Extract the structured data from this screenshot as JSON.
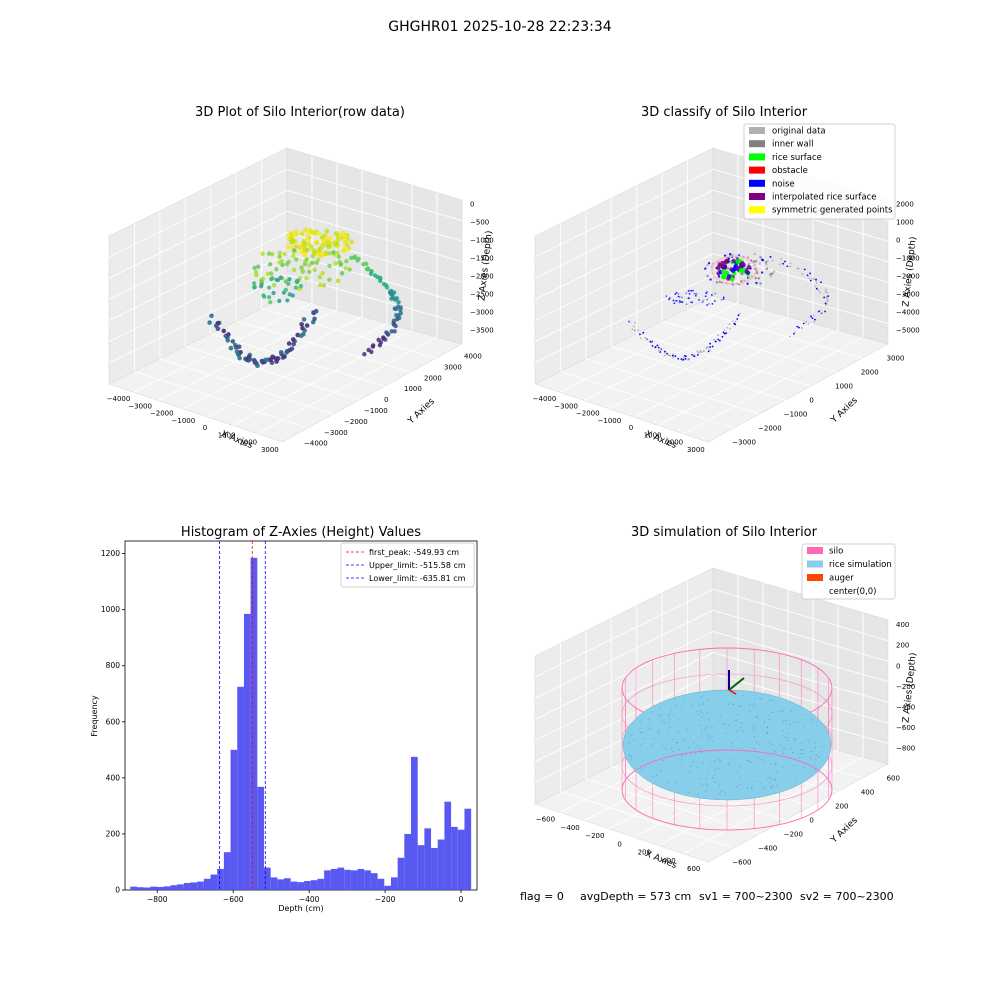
{
  "figure": {
    "suptitle": "GHGHR01 2025-10-28 22:23:34",
    "footer": {
      "flag": "flag = 0",
      "avg": "avgDepth = 573 cm",
      "sv1": "sv1 = 700~2300",
      "sv2": "sv2 = 700~2300"
    }
  },
  "chart_data": [
    {
      "type": "scatter",
      "subtype": "3d",
      "title": "3D Plot of Silo Interior(row data)",
      "xlabel": "X Axies",
      "ylabel": "Y Axies",
      "zlabel": "Z Axies (Depth)",
      "x_ticks": [
        "−4000",
        "−3000",
        "−2000",
        "−1000",
        "0",
        "1000",
        "2000",
        "3000"
      ],
      "y_ticks": [
        "−4000",
        "−3000",
        "−2000",
        "−1000",
        "0",
        "1000",
        "2000",
        "3000",
        "4000"
      ],
      "z_ticks": [
        "0",
        "−500",
        "−1000",
        "−1500",
        "−2000",
        "−2500",
        "−3000",
        "−3500"
      ],
      "colormap": "viridis",
      "grid": true
    },
    {
      "type": "scatter",
      "subtype": "3d",
      "title": "3D classify of Silo Interior",
      "xlabel": "X Axies",
      "ylabel": "Y Axies",
      "zlabel": "Z Axies (Depth)",
      "x_ticks": [
        "−4000",
        "−3000",
        "−2000",
        "−1000",
        "0",
        "1000",
        "2000",
        "3000"
      ],
      "y_ticks": [
        "−3000",
        "−2000",
        "−1000",
        "0",
        "1000",
        "2000",
        "3000"
      ],
      "z_ticks": [
        "2000",
        "1000",
        "0",
        "−1000",
        "−2000",
        "−3000",
        "−4000",
        "−5000"
      ],
      "legend_position": "top-right",
      "legend": [
        {
          "label": "original data",
          "color": "#b0b0b0"
        },
        {
          "label": "inner wall",
          "color": "#808080"
        },
        {
          "label": "rice surface",
          "color": "#00ff00"
        },
        {
          "label": "obstacle",
          "color": "#ff0000"
        },
        {
          "label": "noise",
          "color": "#0000ff"
        },
        {
          "label": "interpolated rice surface",
          "color": "#800080"
        },
        {
          "label": "symmetric generated points",
          "color": "#ffff00"
        }
      ],
      "grid": true
    },
    {
      "type": "bar",
      "subtype": "histogram",
      "title": "Histogram of Z-Axies (Height) Values",
      "xlabel": "Depth (cm)",
      "ylabel": "Frequency",
      "xlim": [
        -885,
        42
      ],
      "ylim": [
        0,
        1245
      ],
      "x_ticks": [
        "−800",
        "−600",
        "−400",
        "−200",
        "0"
      ],
      "y_ticks": [
        "0",
        "200",
        "400",
        "600",
        "800",
        "1000",
        "1200"
      ],
      "bin_width": 17.6,
      "bin_start": -871,
      "values": [
        12,
        10,
        9,
        12,
        11,
        13,
        17,
        20,
        25,
        27,
        30,
        40,
        55,
        75,
        135,
        500,
        725,
        985,
        1185,
        368,
        80,
        45,
        38,
        42,
        30,
        28,
        32,
        35,
        40,
        70,
        75,
        80,
        72,
        70,
        75,
        70,
        60,
        40,
        15,
        45,
        115,
        200,
        475,
        160,
        220,
        150,
        180,
        315,
        225,
        215,
        290
      ],
      "bar_color": "#5050f0",
      "lines": [
        {
          "label": "first_peak: -549.93 cm",
          "x": -549.93,
          "color": "#ff0000"
        },
        {
          "label": "Upper_limit: -515.58 cm",
          "x": -515.58,
          "color": "#0000ff"
        },
        {
          "label": "Lower_limit: -635.81 cm",
          "x": -635.81,
          "color": "#0000ff"
        }
      ],
      "legend_position": "top-right",
      "grid": false
    },
    {
      "type": "scatter",
      "subtype": "3d",
      "title": "3D simulation of Silo Interior",
      "xlabel": "X Axies",
      "ylabel": "Y Axies",
      "zlabel": "Z Axies (Depth)",
      "x_ticks": [
        "−600",
        "−400",
        "−200",
        "0",
        "200",
        "400",
        "600"
      ],
      "y_ticks": [
        "−600",
        "−400",
        "−200",
        "0",
        "200",
        "400",
        "600"
      ],
      "z_ticks": [
        "400",
        "200",
        "0",
        "−200",
        "−400",
        "−600",
        "−800"
      ],
      "legend_position": "top-right",
      "legend": [
        {
          "label": "silo",
          "color": "#ff69b4"
        },
        {
          "label": "rice simulation",
          "color": "#87ceeb"
        },
        {
          "label": "auger",
          "color": "#ff4500"
        },
        {
          "label": "center(0,0)",
          "color": ""
        }
      ],
      "grid": true
    }
  ]
}
